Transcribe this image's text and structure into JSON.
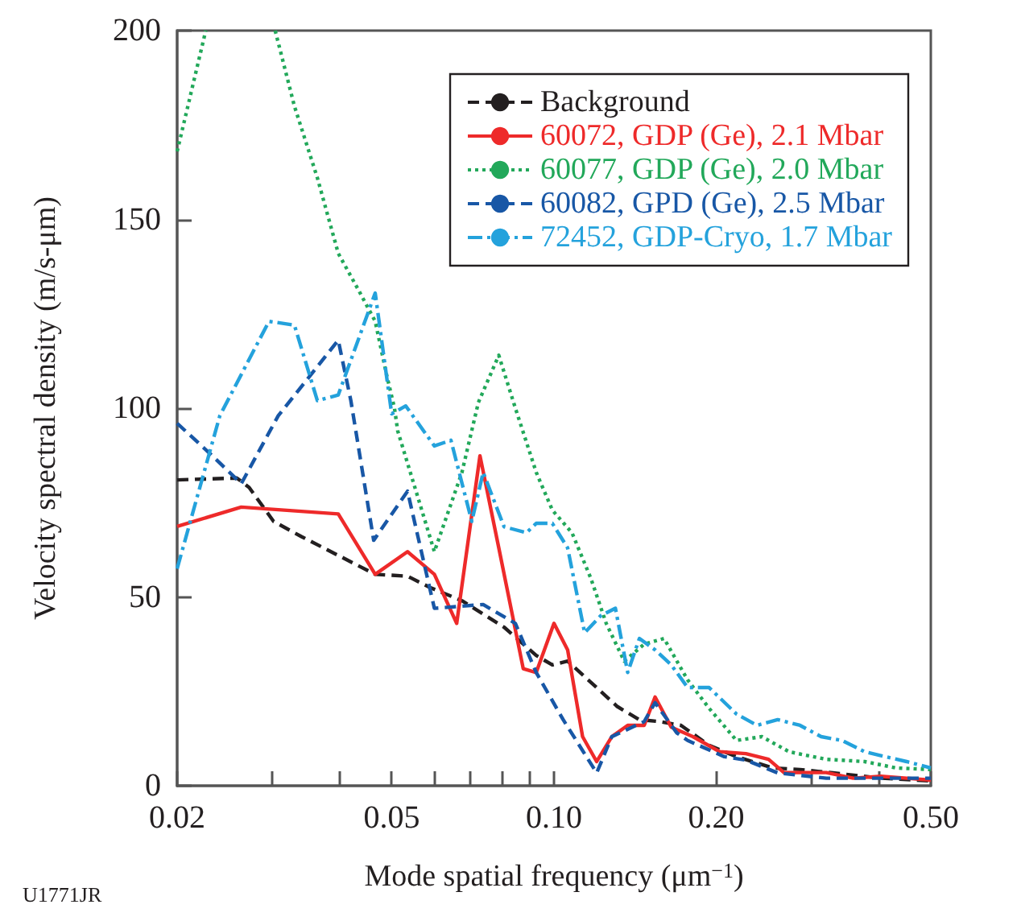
{
  "chart_data": {
    "type": "line",
    "xlabel": "Mode spatial frequency (μm$^{−1}$)",
    "ylabel": "Velocity spectral density (m/s-μm)",
    "annotations": [
      "U1771JR"
    ],
    "log": "x",
    "xlim": [
      0.02,
      0.5
    ],
    "xticks": [
      {
        "value": 0.02,
        "label": "0.02"
      },
      {
        "value": 0.03,
        "label": null
      },
      {
        "value": 0.04,
        "label": null
      },
      {
        "value": 0.05,
        "label": "0.05"
      },
      {
        "value": 0.06,
        "label": null
      },
      {
        "value": 0.07,
        "label": null
      },
      {
        "value": 0.08,
        "label": null
      },
      {
        "value": 0.09,
        "label": null
      },
      {
        "value": 0.1,
        "label": "0.10"
      },
      {
        "value": 0.2,
        "label": "0.20"
      },
      {
        "value": 0.3,
        "label": null
      },
      {
        "value": 0.4,
        "label": null
      },
      {
        "value": 0.5,
        "label": "0.50"
      }
    ],
    "ylim": [
      0,
      200
    ],
    "yticks": [
      0,
      50,
      100,
      150,
      200
    ],
    "grid": false,
    "legend": "top right",
    "marker": "none",
    "series": [
      {
        "name": "Background",
        "color": "#231f20",
        "line_style": "dashed",
        "x": [
          0.02,
          0.0258,
          0.0272,
          0.0302,
          0.034,
          0.0398,
          0.0466,
          0.0535,
          0.0589,
          0.0675,
          0.0808,
          0.0927,
          0.0993,
          0.106,
          0.12,
          0.131,
          0.144,
          0.157,
          0.172,
          0.194,
          0.218,
          0.255,
          0.286,
          0.329,
          0.404,
          0.5
        ],
        "values": [
          81,
          81.5,
          79,
          70,
          66,
          61,
          56,
          55.5,
          52.5,
          49,
          42,
          34.5,
          32,
          33,
          26,
          21,
          17.5,
          17,
          16,
          10.7,
          7.7,
          4.7,
          4.3,
          3.4,
          2,
          1.3
        ]
      },
      {
        "name": "60072, GDP (Ge), 2.1 Mbar",
        "color": "#ee2a2a",
        "line_style": "solid",
        "x": [
          0.02,
          0.0263,
          0.0398,
          0.0466,
          0.0535,
          0.06,
          0.066,
          0.0729,
          0.079,
          0.0877,
          0.0927,
          0.1,
          0.106,
          0.113,
          0.12,
          0.128,
          0.137,
          0.147,
          0.154,
          0.165,
          0.181,
          0.203,
          0.227,
          0.25,
          0.267,
          0.298,
          0.32,
          0.359,
          0.404,
          0.451,
          0.5
        ],
        "values": [
          68.7,
          73.8,
          72,
          56,
          62,
          56,
          43,
          87.4,
          63,
          31,
          30,
          43,
          36,
          13,
          6.4,
          13,
          16,
          16,
          23.5,
          15.5,
          13,
          9,
          8.5,
          7,
          3.5,
          3.5,
          3.5,
          2,
          2.5,
          2,
          1.5
        ]
      },
      {
        "name": "60077, GDP (Ge), 2.0 Mbar",
        "color": "#22a85a",
        "line_style": "dotted",
        "x": [
          0.02,
          0.0226,
          0.026,
          0.0304,
          0.033,
          0.0364,
          0.0398,
          0.0435,
          0.0466,
          0.0489,
          0.0506,
          0.0513,
          0.06,
          0.0675,
          0.0724,
          0.079,
          0.0848,
          0.0927,
          0.0993,
          0.108,
          0.117,
          0.125,
          0.135,
          0.147,
          0.16,
          0.177,
          0.194,
          0.218,
          0.243,
          0.273,
          0.32,
          0.377,
          0.432,
          0.5
        ],
        "values": [
          168,
          200,
          null,
          200,
          180,
          161,
          141,
          131,
          123,
          109,
          100,
          94,
          62,
          83,
          101.5,
          114,
          100,
          83,
          73,
          67,
          55,
          43,
          33,
          37.5,
          39,
          28,
          20.5,
          12,
          13,
          9,
          7,
          6.4,
          4.7,
          4.3
        ]
      },
      {
        "name": "60082, GPD (Ge), 2.5 Mbar",
        "color": "#1857a6",
        "line_style": "dashed",
        "x": [
          0.02,
          0.023,
          0.0263,
          0.0308,
          0.0364,
          0.0398,
          0.042,
          0.0463,
          0.0535,
          0.06,
          0.0739,
          0.0848,
          0.0927,
          0.104,
          0.12,
          0.128,
          0.147,
          0.154,
          0.169,
          0.177,
          0.207,
          0.227,
          0.26,
          0.32,
          0.404,
          0.5
        ],
        "values": [
          96,
          88,
          80,
          98,
          111,
          118,
          102,
          65,
          78,
          47,
          48,
          43,
          30,
          17.5,
          3.4,
          13,
          17,
          22,
          14,
          12,
          7.7,
          6.8,
          3.4,
          2,
          2,
          2
        ]
      },
      {
        "name": "72452, GDP-Cryo, 1.7 Mbar",
        "color": "#24a2dc",
        "line_style": "dashdot",
        "x": [
          0.02,
          0.024,
          0.0296,
          0.033,
          0.0364,
          0.0398,
          0.0466,
          0.05,
          0.0531,
          0.06,
          0.0644,
          0.0704,
          0.0739,
          0.0808,
          0.0889,
          0.0927,
          0.0993,
          0.106,
          0.114,
          0.122,
          0.13,
          0.137,
          0.144,
          0.154,
          0.165,
          0.177,
          0.194,
          0.218,
          0.238,
          0.26,
          0.286,
          0.313,
          0.342,
          0.377,
          0.412,
          0.451,
          0.5
        ],
        "values": [
          57.5,
          98,
          123,
          122,
          102,
          103.5,
          130.5,
          98.5,
          100.6,
          90,
          91.5,
          70,
          83,
          68.6,
          67,
          69.5,
          69.5,
          63,
          40.5,
          45,
          47,
          30,
          39,
          36,
          32,
          26,
          26,
          19,
          16,
          17.5,
          16,
          13,
          12,
          9,
          7.7,
          6.4,
          4.7
        ]
      }
    ]
  }
}
